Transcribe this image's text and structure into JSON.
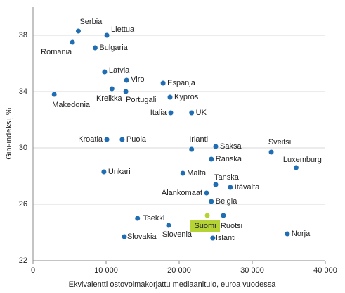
{
  "chart_data": {
    "type": "scatter",
    "x_label": "Ekvivalentti ostovoimakorjattu mediaanitulo, euroa vuodessa",
    "y_label": "Gini-indeksi, %",
    "xlim": [
      0,
      40000
    ],
    "ylim": [
      22,
      40
    ],
    "xticks": [
      0,
      {
        "value": 10000,
        "label": "10 000"
      },
      {
        "value": 20000,
        "label": "20 000"
      },
      {
        "value": 30000,
        "label": "30 000"
      },
      {
        "value": 40000,
        "label": "40 000"
      }
    ],
    "yticks": [
      22,
      26,
      30,
      34,
      38
    ],
    "grid": true,
    "points": [
      {
        "label": "Serbia",
        "x": 6200,
        "y": 38.3,
        "color": "#1f6db3"
      },
      {
        "label": "Liettua",
        "x": 10100,
        "y": 38.0,
        "color": "#1f6db3"
      },
      {
        "label": "Romania",
        "x": 5400,
        "y": 37.5,
        "color": "#1f6db3"
      },
      {
        "label": "Bulgaria",
        "x": 8500,
        "y": 37.1,
        "color": "#1f6db3"
      },
      {
        "label": "Latvia",
        "x": 9800,
        "y": 35.4,
        "color": "#1f6db3"
      },
      {
        "label": "Viro",
        "x": 12800,
        "y": 34.8,
        "color": "#1f6db3"
      },
      {
        "label": "Espanja",
        "x": 17800,
        "y": 34.6,
        "color": "#1f6db3"
      },
      {
        "label": "Kreikka",
        "x": 10800,
        "y": 34.2,
        "color": "#1f6db3"
      },
      {
        "label": "Portugali",
        "x": 12700,
        "y": 34.0,
        "color": "#1f6db3"
      },
      {
        "label": "Makedonia",
        "x": 2900,
        "y": 33.8,
        "color": "#1f6db3"
      },
      {
        "label": "Kypros",
        "x": 18750,
        "y": 33.6,
        "color": "#1f6db3"
      },
      {
        "label": "Italia",
        "x": 18850,
        "y": 32.5,
        "color": "#1f6db3"
      },
      {
        "label": "UK",
        "x": 21700,
        "y": 32.5,
        "color": "#1f6db3"
      },
      {
        "label": "Kroatia",
        "x": 10100,
        "y": 30.6,
        "color": "#1f6db3"
      },
      {
        "label": "Puola",
        "x": 12200,
        "y": 30.6,
        "color": "#1f6db3"
      },
      {
        "label": "Irlanti",
        "x": 21700,
        "y": 29.9,
        "color": "#1f6db3"
      },
      {
        "label": "Saksa",
        "x": 25000,
        "y": 30.1,
        "color": "#1f6db3"
      },
      {
        "label": "Sveitsi",
        "x": 32600,
        "y": 29.7,
        "color": "#1f6db3"
      },
      {
        "label": "Ranska",
        "x": 24400,
        "y": 29.2,
        "color": "#1f6db3"
      },
      {
        "label": "Luxemburg",
        "x": 36000,
        "y": 28.6,
        "color": "#1f6db3"
      },
      {
        "label": "Unkari",
        "x": 9700,
        "y": 28.3,
        "color": "#1f6db3"
      },
      {
        "label": "Malta",
        "x": 20500,
        "y": 28.2,
        "color": "#1f6db3"
      },
      {
        "label": "Tanska",
        "x": 25000,
        "y": 27.4,
        "color": "#1f6db3"
      },
      {
        "label": "Itävalta",
        "x": 27000,
        "y": 27.2,
        "color": "#1f6db3"
      },
      {
        "label": "Alankomaat",
        "x": 23750,
        "y": 26.8,
        "color": "#1f6db3"
      },
      {
        "label": "Belgia",
        "x": 24400,
        "y": 26.2,
        "color": "#1f6db3"
      },
      {
        "label": "Suomi",
        "x": 23850,
        "y": 25.2,
        "color": "#b5d334"
      },
      {
        "label": "Ruotsi",
        "x": 26050,
        "y": 25.2,
        "color": "#1f6db3"
      },
      {
        "label": "Tsekki",
        "x": 14300,
        "y": 25.0,
        "color": "#1f6db3"
      },
      {
        "label": "Slovenia",
        "x": 18550,
        "y": 24.5,
        "color": "#1f6db3"
      },
      {
        "label": "Norja",
        "x": 34800,
        "y": 23.9,
        "color": "#1f6db3"
      },
      {
        "label": "Slovakia",
        "x": 12500,
        "y": 23.7,
        "color": "#1f6db3"
      },
      {
        "label": "Islanti",
        "x": 24600,
        "y": 23.6,
        "color": "#1f6db3"
      }
    ]
  }
}
